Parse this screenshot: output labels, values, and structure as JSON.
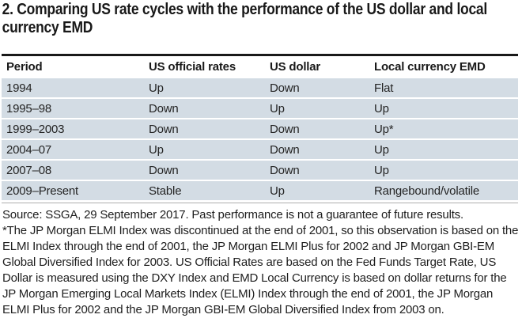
{
  "title": "2. Comparing US rate cycles with the performance of the US dollar and local currency EMD",
  "table": {
    "columns": [
      "Period",
      "US official rates",
      "US dollar",
      "Local currency EMD"
    ],
    "rows": [
      [
        "1994",
        "Up",
        "Down",
        "Flat"
      ],
      [
        "1995–98",
        "Down",
        "Up",
        "Up"
      ],
      [
        "1999–2003",
        "Down",
        "Down",
        "Up*"
      ],
      [
        "2004–07",
        "Up",
        "Down",
        "Up"
      ],
      [
        "2007–08",
        "Down",
        "Down",
        "Up"
      ],
      [
        "2009–Present",
        "Stable",
        "Up",
        "Rangebound/volatile"
      ]
    ]
  },
  "footnotes": {
    "source": "Source: SSGA, 29 September 2017. Past performance is not a guarantee of future results.",
    "note": "*The JP Morgan ELMI Index was discontinued at the end of 2001, so this observation is based on the ELMI Index through the end of 2001, the JP Morgan ELMI Plus for 2002 and JP Morgan GBI-EM Global Diversified Index for 2003. US Official Rates are based on the Fed Funds Target Rate, US Dollar is measured using the DXY Index and EMD Local Currency is based on dollar returns for the JP Morgan Emerging Local Markets Index (ELMI) Index through the end of 2001, the JP Morgan ELMI Plus for 2002 and the JP Morgan GBI-EM Global Diversified Index from 2003 on."
  },
  "colors": {
    "row_background": "#d3dce4",
    "text": "#1e1e1e",
    "rule_black": "#191919",
    "rule_gray": "#aeaeae"
  },
  "chart_data": {
    "type": "table",
    "title": "2. Comparing US rate cycles with the performance of the US dollar and local currency EMD",
    "columns": [
      "Period",
      "US official rates",
      "US dollar",
      "Local currency EMD"
    ],
    "rows": [
      [
        "1994",
        "Up",
        "Down",
        "Flat"
      ],
      [
        "1995–98",
        "Down",
        "Up",
        "Up"
      ],
      [
        "1999–2003",
        "Down",
        "Down",
        "Up*"
      ],
      [
        "2004–07",
        "Up",
        "Down",
        "Up"
      ],
      [
        "2007–08",
        "Down",
        "Down",
        "Up"
      ],
      [
        "2009–Present",
        "Stable",
        "Up",
        "Rangebound/volatile"
      ]
    ]
  }
}
